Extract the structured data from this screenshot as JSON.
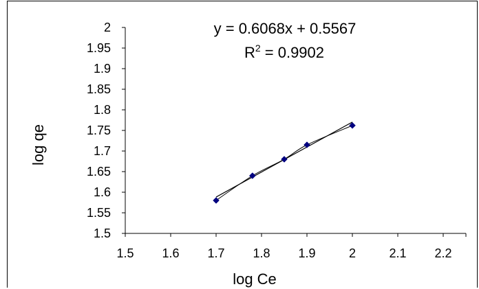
{
  "chart_data": {
    "type": "scatter",
    "x": [
      1.7,
      1.78,
      1.85,
      1.9,
      2.0
    ],
    "y": [
      1.58,
      1.64,
      1.68,
      1.715,
      1.762
    ],
    "xlabel": "log Ce",
    "ylabel": "log qe",
    "xlim": [
      1.5,
      2.25
    ],
    "ylim": [
      1.5,
      2.0
    ],
    "x_ticks": [
      "1.5",
      "1.6",
      "1.7",
      "1.8",
      "1.9",
      "2",
      "2.1",
      "2.2"
    ],
    "x_tick_values": [
      1.5,
      1.6,
      1.7,
      1.8,
      1.9,
      2.0,
      2.1,
      2.2
    ],
    "y_ticks": [
      "1.5",
      "1.55",
      "1.6",
      "1.65",
      "1.7",
      "1.75",
      "1.8",
      "1.85",
      "1.9",
      "1.95",
      "2"
    ],
    "y_tick_values": [
      1.5,
      1.55,
      1.6,
      1.65,
      1.7,
      1.75,
      1.8,
      1.85,
      1.9,
      1.95,
      2.0
    ],
    "trendline": {
      "slope": 0.6068,
      "intercept": 0.5567,
      "x_range": [
        1.7,
        2.0
      ]
    },
    "equation": "y = 0.6068x + 0.5567",
    "r_squared_prefix": "R",
    "r_squared_exponent": "2",
    "r_squared_value": " = 0.9902",
    "marker_color": "#000080",
    "line_color": "#000000",
    "grid": false,
    "legend": "none"
  }
}
